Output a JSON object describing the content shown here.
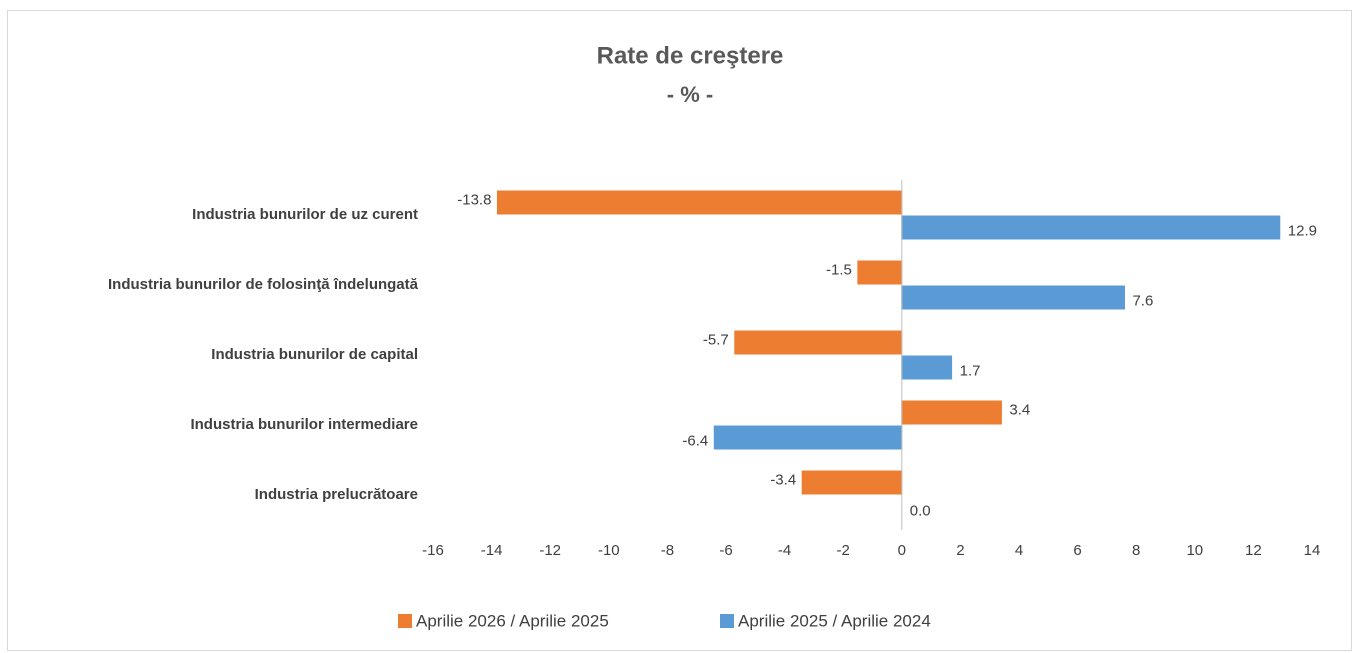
{
  "chart_data": {
    "type": "hbar",
    "title": "Rate de creştere",
    "subtitle": "- % -",
    "categories": [
      "Industria bunurilor de uz curent",
      "Industria bunurilor de folosinţă  îndelungată",
      "Industria bunurilor de capital",
      "Industria bunurilor intermediare",
      "Industria prelucrătoare"
    ],
    "series": [
      {
        "name": "Aprilie 2026 / Aprilie 2025",
        "color": "#ed7d31",
        "values": [
          -13.8,
          -1.5,
          -5.7,
          3.4,
          -3.4
        ]
      },
      {
        "name": "Aprilie 2025 / Aprilie 2024",
        "color": "#5b9bd5",
        "values": [
          12.9,
          7.6,
          1.7,
          -6.4,
          0.0
        ],
        "value_labels": [
          "12.9",
          "7.6",
          "1.7",
          "-6.4",
          "0.0"
        ]
      }
    ],
    "xlim": [
      -16,
      14
    ],
    "xticks": [
      -16,
      -14,
      -12,
      -10,
      -8,
      -6,
      -4,
      -2,
      0,
      2,
      4,
      6,
      8,
      10,
      12,
      14
    ],
    "grid": false,
    "legend": "bottom"
  }
}
